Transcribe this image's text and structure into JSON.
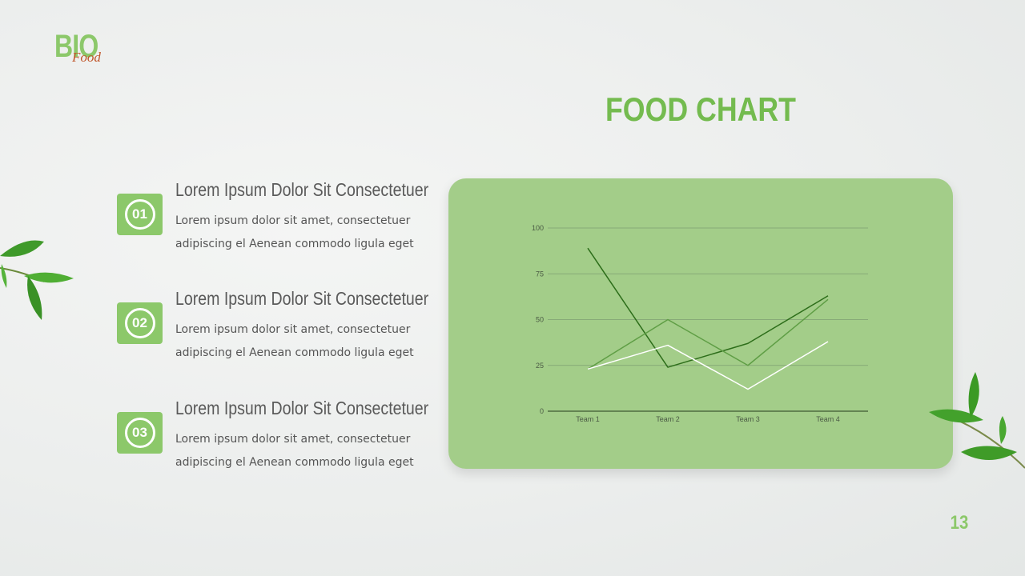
{
  "logo": {
    "main": "BIO",
    "sub": "Food"
  },
  "title": "FOOD CHART",
  "items": [
    {
      "number": "01",
      "heading": "Lorem Ipsum Dolor Sit Consectetuer",
      "body": "Lorem ipsum dolor sit amet, consectetuer adipiscing el Aenean commodo ligula eget"
    },
    {
      "number": "02",
      "heading": "Lorem Ipsum Dolor Sit Consectetuer",
      "body": "Lorem ipsum dolor sit amet, consectetuer adipiscing el Aenean commodo ligula eget"
    },
    {
      "number": "03",
      "heading": "Lorem Ipsum Dolor Sit Consectetuer",
      "body": "Lorem ipsum dolor sit amet, consectetuer adipiscing el Aenean commodo ligula eget"
    }
  ],
  "chart_data": {
    "type": "line",
    "categories": [
      "Team 1",
      "Team 2",
      "Team 3",
      "Team 4"
    ],
    "series": [
      {
        "values": [
          89,
          24,
          37,
          63
        ],
        "color": "#2d6e1a"
      },
      {
        "values": [
          23,
          50,
          25,
          61
        ],
        "color": "#5f9e45"
      },
      {
        "values": [
          23,
          36,
          12,
          38
        ],
        "color": "#ffffff"
      }
    ],
    "yticks": [
      0,
      25,
      50,
      75,
      100
    ],
    "ylim": [
      0,
      100
    ],
    "grid": true,
    "legend": false
  },
  "page_number": "13",
  "colors": {
    "accent": "#8cc86a",
    "title": "#74bb4f",
    "card": "#a3cd89"
  }
}
